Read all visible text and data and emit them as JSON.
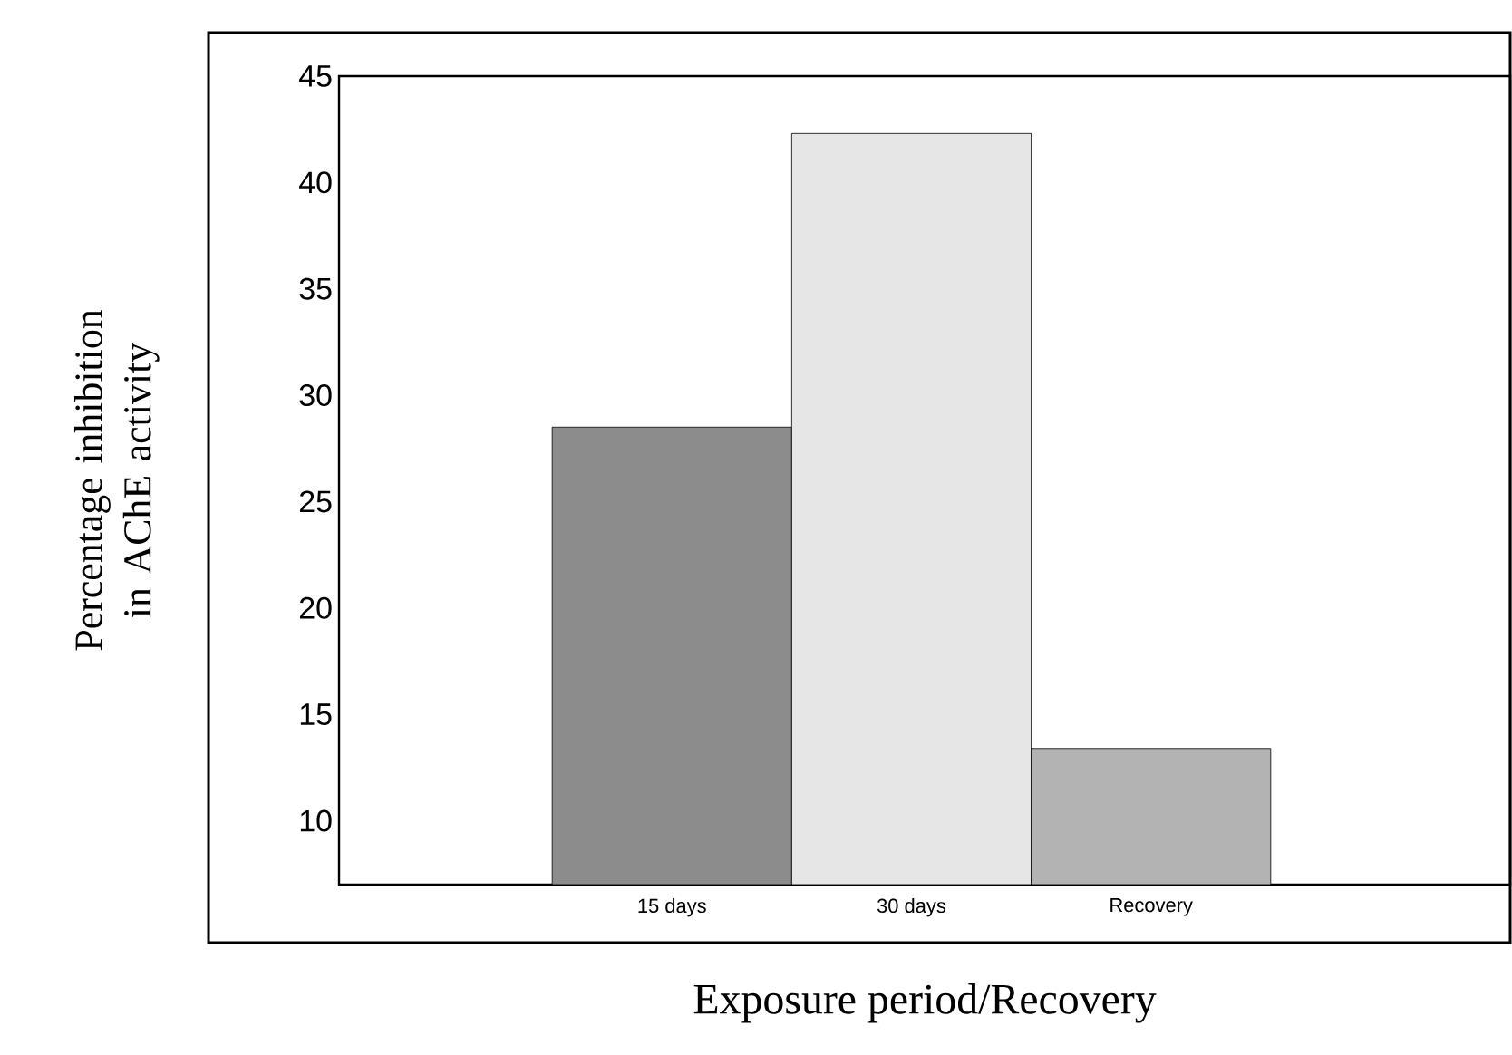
{
  "chart_data": {
    "type": "bar",
    "xlabel": "Exposure period/Recovery",
    "ylabel": "Percentage inhibition in AChE activity",
    "categories": [
      "15 days",
      "30 days",
      "Recovery"
    ],
    "values": [
      28.5,
      42.3,
      13.4
    ],
    "colors": [
      "#8c8c8c",
      "#e6e6e6",
      "#b3b3b3"
    ],
    "yticks": [
      10,
      15,
      20,
      25,
      30,
      35,
      40,
      45
    ],
    "ylim": [
      7,
      45
    ]
  }
}
